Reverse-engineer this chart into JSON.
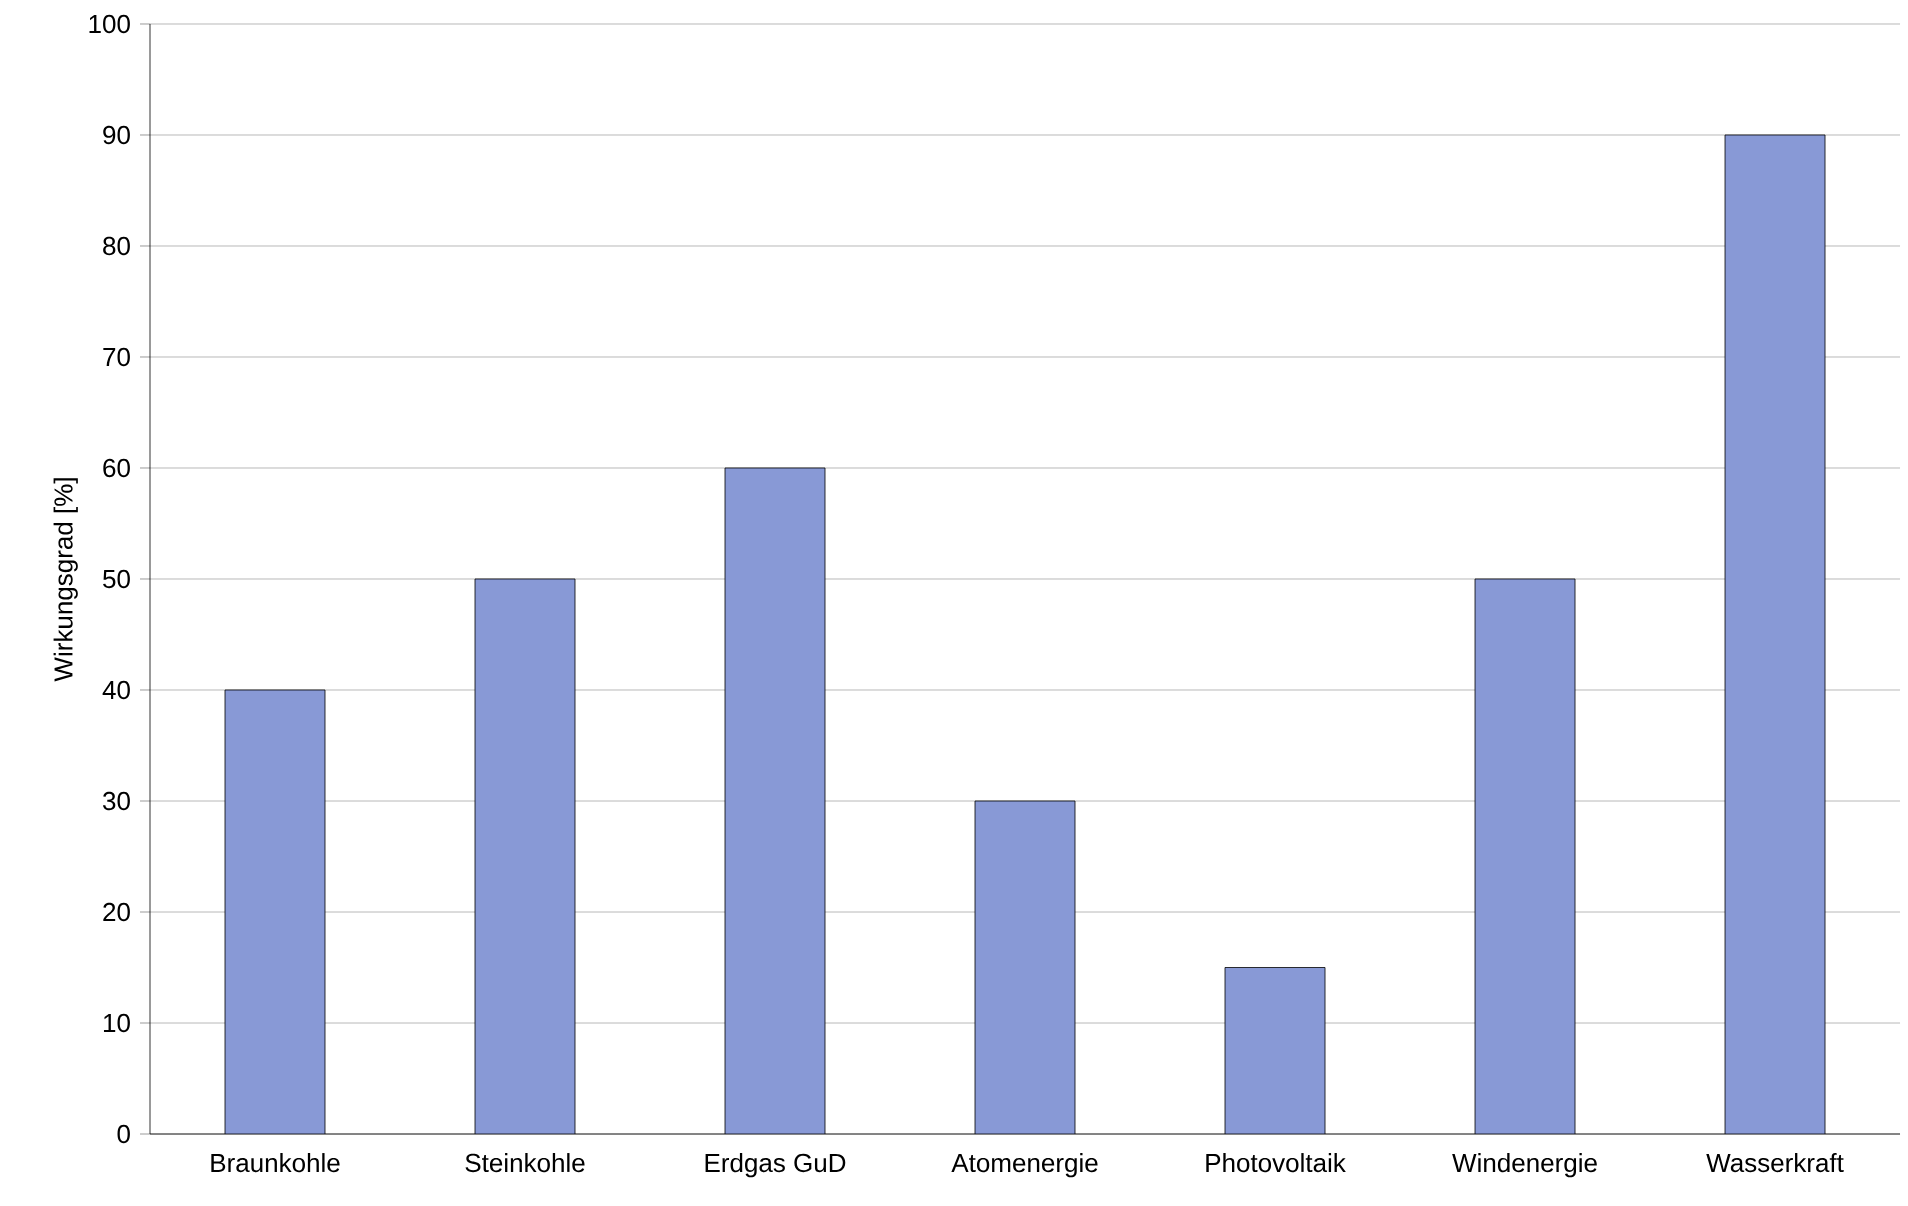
{
  "chart_data": {
    "type": "bar",
    "ylabel": "Wirkungsgrad [%]",
    "categories": [
      "Braunkohle",
      "Steinkohle",
      "Erdgas GuD",
      "Atomenergie",
      "Photovoltaik",
      "Windenergie",
      "Wasserkraft"
    ],
    "values": [
      40,
      50,
      60,
      30,
      15,
      50,
      90
    ],
    "color": "#8899d6",
    "ylim": [
      0,
      100
    ],
    "yticks": [
      0,
      10,
      20,
      30,
      40,
      50,
      60,
      70,
      80,
      90,
      100
    ],
    "grid": "y"
  }
}
